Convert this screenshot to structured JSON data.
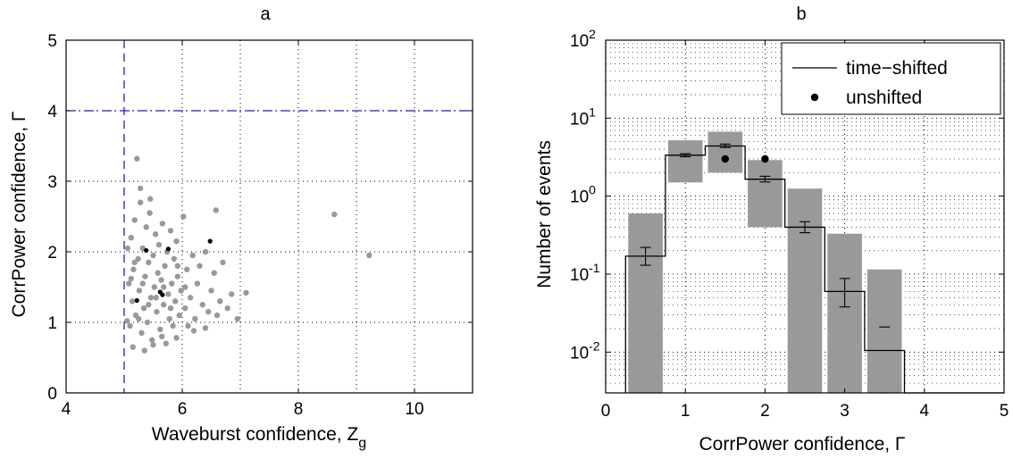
{
  "colors": {
    "scatter_gray": "#999999",
    "threshold_blue": "#1f1fbf",
    "bar_gray": "#999999",
    "black": "#000000"
  },
  "chart_data": [
    {
      "type": "scatter",
      "title": "a",
      "xlabel": "Waveburst confidence, Z",
      "xlabel_sub": "g",
      "ylabel": "CorrPower confidence, Γ",
      "xlim": [
        4,
        11
      ],
      "ylim": [
        0,
        5
      ],
      "xticks": [
        "4",
        "6",
        "8",
        "10"
      ],
      "yticks": [
        "0",
        "1",
        "2",
        "3",
        "4",
        "5"
      ],
      "grid": true,
      "thresholds": {
        "x": 5,
        "y": 4
      },
      "series": [
        {
          "color": "#999999",
          "points": [
            [
              5.05,
              1.02
            ],
            [
              5.08,
              1.55
            ],
            [
              5.1,
              0.95
            ],
            [
              5.12,
              2.2
            ],
            [
              5.14,
              1.3
            ],
            [
              5.16,
              1.75
            ],
            [
              5.18,
              2.45
            ],
            [
              5.2,
              1.1
            ],
            [
              5.22,
              3.32
            ],
            [
              5.24,
              1.9
            ],
            [
              5.26,
              1.45
            ],
            [
              5.28,
              2.7
            ],
            [
              5.3,
              0.85
            ],
            [
              5.32,
              2.05
            ],
            [
              5.34,
              1.2
            ],
            [
              5.36,
              1.65
            ],
            [
              5.38,
              2.35
            ],
            [
              5.4,
              1.0
            ],
            [
              5.42,
              1.85
            ],
            [
              5.44,
              2.55
            ],
            [
              5.46,
              1.35
            ],
            [
              5.48,
              0.75
            ],
            [
              5.5,
              1.95
            ],
            [
              5.52,
              1.5
            ],
            [
              5.54,
              2.25
            ],
            [
              5.56,
              1.15
            ],
            [
              5.58,
              1.7
            ],
            [
              5.6,
              2.1
            ],
            [
              5.62,
              0.9
            ],
            [
              5.64,
              1.6
            ],
            [
              5.66,
              2.4
            ],
            [
              5.68,
              1.25
            ],
            [
              5.7,
              1.8
            ],
            [
              5.72,
              0.7
            ],
            [
              5.74,
              2.0
            ],
            [
              5.76,
              1.4
            ],
            [
              5.78,
              1.05
            ],
            [
              5.8,
              2.3
            ],
            [
              5.82,
              1.55
            ],
            [
              5.84,
              0.95
            ],
            [
              5.86,
              1.9
            ],
            [
              5.88,
              1.3
            ],
            [
              5.9,
              2.15
            ],
            [
              5.92,
              1.65
            ],
            [
              5.95,
              1.1
            ],
            [
              5.98,
              1.45
            ],
            [
              6.02,
              2.5
            ],
            [
              6.05,
              1.2
            ],
            [
              6.08,
              1.75
            ],
            [
              6.1,
              0.95
            ],
            [
              6.14,
              1.35
            ],
            [
              6.18,
              1.95
            ],
            [
              6.22,
              1.05
            ],
            [
              6.26,
              1.55
            ],
            [
              6.3,
              1.8
            ],
            [
              6.35,
              1.25
            ],
            [
              6.4,
              2.0
            ],
            [
              6.45,
              1.15
            ],
            [
              6.5,
              1.45
            ],
            [
              6.55,
              1.7
            ],
            [
              6.6,
              1.1
            ],
            [
              6.65,
              1.3
            ],
            [
              6.7,
              1.85
            ],
            [
              6.78,
              1.2
            ],
            [
              6.85,
              1.4
            ],
            [
              6.95,
              1.05
            ],
            [
              7.1,
              1.42
            ],
            [
              6.58,
              2.59
            ],
            [
              8.62,
              2.53
            ],
            [
              9.22,
              1.95
            ],
            [
              5.12,
              1.62
            ],
            [
              5.18,
              1.85
            ],
            [
              5.25,
              1.05
            ],
            [
              5.32,
              1.55
            ],
            [
              5.42,
              1.25
            ],
            [
              5.55,
              1.35
            ],
            [
              5.68,
              1.5
            ],
            [
              5.8,
              1.2
            ],
            [
              5.92,
              1.8
            ],
            [
              6.05,
              1.5
            ],
            [
              5.06,
              2.05
            ],
            [
              5.15,
              0.65
            ],
            [
              5.35,
              0.6
            ],
            [
              5.5,
              0.68
            ],
            [
              5.65,
              0.8
            ],
            [
              5.9,
              0.78
            ],
            [
              6.2,
              0.88
            ],
            [
              6.4,
              0.92
            ],
            [
              5.28,
              2.9
            ],
            [
              5.45,
              2.75
            ]
          ]
        },
        {
          "color": "#000000",
          "points": [
            [
              5.22,
              1.31
            ],
            [
              5.38,
              2.02
            ],
            [
              5.62,
              1.43
            ],
            [
              5.66,
              1.39
            ],
            [
              5.76,
              2.04
            ],
            [
              6.48,
              2.15
            ]
          ]
        }
      ]
    },
    {
      "type": "bar",
      "title": "b",
      "xlabel": "CorrPower confidence, Γ",
      "ylabel": "Number of events",
      "xlim": [
        0,
        5
      ],
      "ylim": [
        0.003,
        100
      ],
      "yscale": "log",
      "xticks": [
        "0",
        "1",
        "2",
        "3",
        "4",
        "5"
      ],
      "yticks": [
        {
          "base": "10",
          "exp": "-2",
          "value": 0.01
        },
        {
          "base": "10",
          "exp": "-1",
          "value": 0.1
        },
        {
          "base": "10",
          "exp": "0",
          "value": 1
        },
        {
          "base": "10",
          "exp": "1",
          "value": 10
        },
        {
          "base": "10",
          "exp": "2",
          "value": 100
        }
      ],
      "grid": true,
      "legend": {
        "position": "top-right",
        "entries": [
          "time−shifted",
          "unshifted"
        ]
      },
      "bands": [
        {
          "x0": 0.25,
          "x1": 0.75,
          "low": 0.003,
          "high": 0.6
        },
        {
          "x0": 0.75,
          "x1": 1.25,
          "low": 1.5,
          "high": 5.2
        },
        {
          "x0": 1.25,
          "x1": 1.75,
          "low": 2.0,
          "high": 6.7
        },
        {
          "x0": 1.75,
          "x1": 2.25,
          "low": 0.4,
          "high": 2.9
        },
        {
          "x0": 2.25,
          "x1": 2.75,
          "low": 0.003,
          "high": 1.25
        },
        {
          "x0": 2.75,
          "x1": 3.25,
          "low": 0.003,
          "high": 0.33
        },
        {
          "x0": 3.25,
          "x1": 3.75,
          "low": 0.003,
          "high": 0.115
        }
      ],
      "series": [
        {
          "name": "time−shifted",
          "style": "stairs",
          "x_edges": [
            0.25,
            0.75,
            1.25,
            1.75,
            2.25,
            2.75,
            3.25,
            3.75
          ],
          "values": [
            0.17,
            3.35,
            4.4,
            1.65,
            0.4,
            0.06,
            0.0105
          ],
          "err_low": [
            0.13,
            3.2,
            4.2,
            1.52,
            0.34,
            0.038,
            0.003
          ],
          "err_high": [
            0.22,
            3.5,
            4.65,
            1.8,
            0.47,
            0.088,
            0.021
          ],
          "x_centers": [
            0.5,
            1.0,
            1.5,
            2.0,
            2.5,
            3.0,
            3.5
          ]
        },
        {
          "name": "unshifted",
          "style": "markers",
          "x": [
            1.5,
            2.0
          ],
          "y": [
            3.0,
            3.0
          ]
        }
      ]
    }
  ]
}
